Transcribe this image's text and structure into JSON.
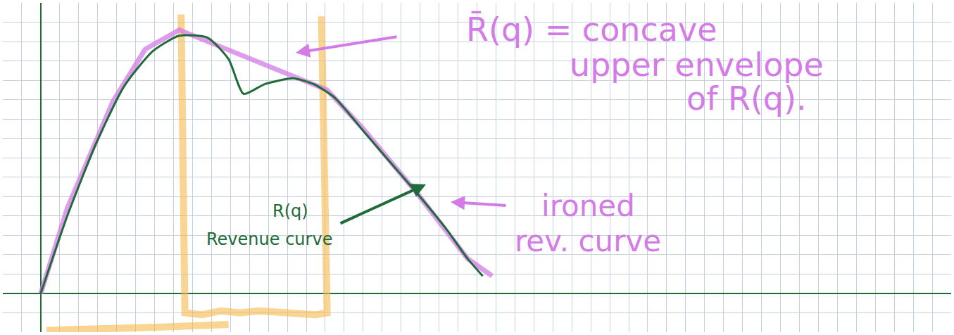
{
  "chart_data": {
    "type": "line",
    "xlim": [
      -2,
      48
    ],
    "ylim": [
      -2,
      15
    ],
    "xticks": [
      -2,
      -1,
      0,
      1,
      2,
      3,
      4,
      5,
      6,
      7,
      8,
      9,
      10,
      11,
      12,
      13,
      14,
      15,
      16,
      17,
      18,
      19,
      20,
      21,
      22,
      23,
      24,
      25,
      26,
      27,
      28,
      29,
      30,
      31,
      32,
      33,
      34,
      35,
      36,
      37,
      38,
      39,
      40,
      41,
      42,
      43,
      44,
      45,
      46,
      47,
      48
    ],
    "yticks": [
      -2,
      -1,
      0,
      1,
      2,
      3,
      4,
      5,
      6,
      7,
      8,
      9,
      10,
      11,
      12,
      13,
      14,
      15
    ],
    "grid": true,
    "tick_labels": false,
    "series": [
      {
        "name": "R(q)",
        "color": "#1f6b3a",
        "x": [
          0,
          1.4,
          2.9,
          4.4,
          5.9,
          7.3,
          8.8,
          9.9,
          10.7,
          11.8,
          13.3,
          14.4,
          15.5,
          17.0,
          18.4,
          19.9,
          21.4,
          22.5,
          23.3
        ],
        "values": [
          0,
          4.0,
          7.7,
          10.7,
          12.5,
          13.3,
          13.2,
          12.1,
          10.3,
          10.8,
          11.1,
          10.8,
          10.1,
          8.4,
          6.8,
          5.1,
          3.3,
          1.8,
          0.9
        ]
      },
      {
        "name": "R̄(q)",
        "color": "#d37be6",
        "x": [
          0,
          1.4,
          3.8,
          5.5,
          7.3,
          15.1,
          17.0,
          19.9,
          22.5,
          23.8
        ],
        "values": [
          0,
          4.4,
          9.9,
          12.6,
          13.6,
          10.5,
          8.5,
          5.1,
          1.8,
          0.9
        ]
      },
      {
        "color": "#f7b84a",
        "x": [
          7.4,
          7.5,
          7.6,
          8.5,
          9.5,
          10.5,
          11.5,
          13.0,
          14.5,
          15.1,
          15.0,
          14.8
        ],
        "values": [
          14.4,
          5.0,
          -1.0,
          -1.1,
          -0.9,
          -1.0,
          -0.9,
          -1.0,
          -1.1,
          -1.0,
          5.0,
          14.3
        ]
      },
      {
        "color": "#f7b84a",
        "x": [
          0.3,
          3.0,
          6.0,
          9.9
        ],
        "values": [
          -1.9,
          -1.85,
          -1.75,
          -1.6
        ]
      }
    ],
    "annotations": [
      {
        "lines": [
          "R̄(q) = concave",
          "upper envelope",
          "of R(q)."
        ],
        "color": "#d37be6"
      },
      {
        "lines": [
          "ironed",
          "rev. curve"
        ],
        "color": "#d37be6"
      },
      {
        "lines": [
          "R(q)",
          "Revenue curve"
        ],
        "color": "#1f6b3a"
      }
    ]
  }
}
